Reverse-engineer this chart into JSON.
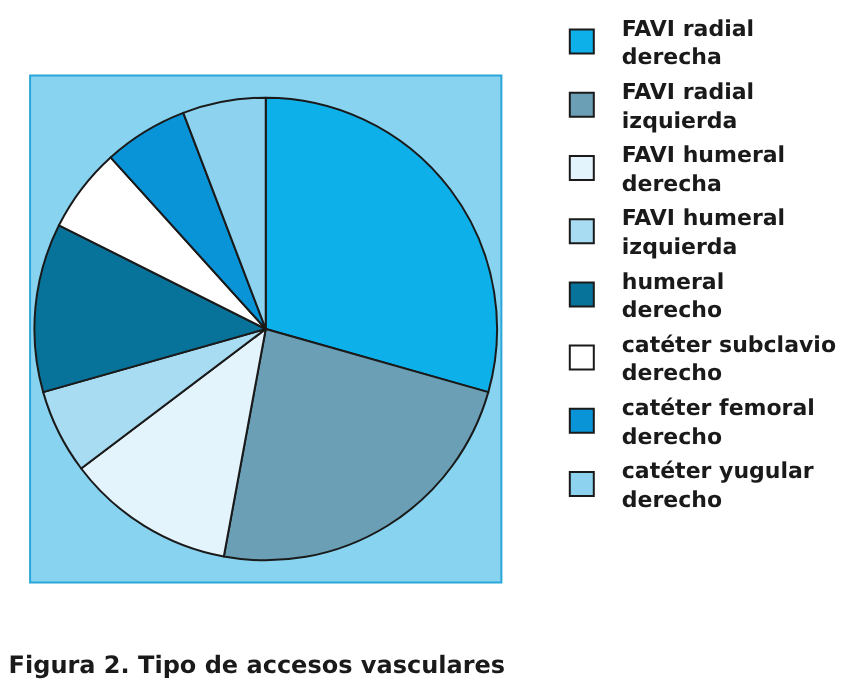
{
  "chart_data": {
    "type": "pie",
    "title": "Figura 2. Tipo de accesos vasculares",
    "categories": [
      "FAVI radial derecha",
      "FAVI radial izquierda",
      "FAVI humeral derecha",
      "FAVI humeral izquierda",
      "humeral derecho",
      "catéter subclavio derecho",
      "catéter femoral derecho",
      "catéter yugular derecho"
    ],
    "values": [
      29.4,
      23.5,
      11.8,
      5.9,
      11.8,
      5.9,
      5.9,
      5.8
    ],
    "colors": [
      "#0db0e8",
      "#6a9fb5",
      "#e4f4fc",
      "#a8dcf2",
      "#07739a",
      "#ffffff",
      "#0994d8",
      "#8dd3f0"
    ],
    "legend": "right"
  }
}
